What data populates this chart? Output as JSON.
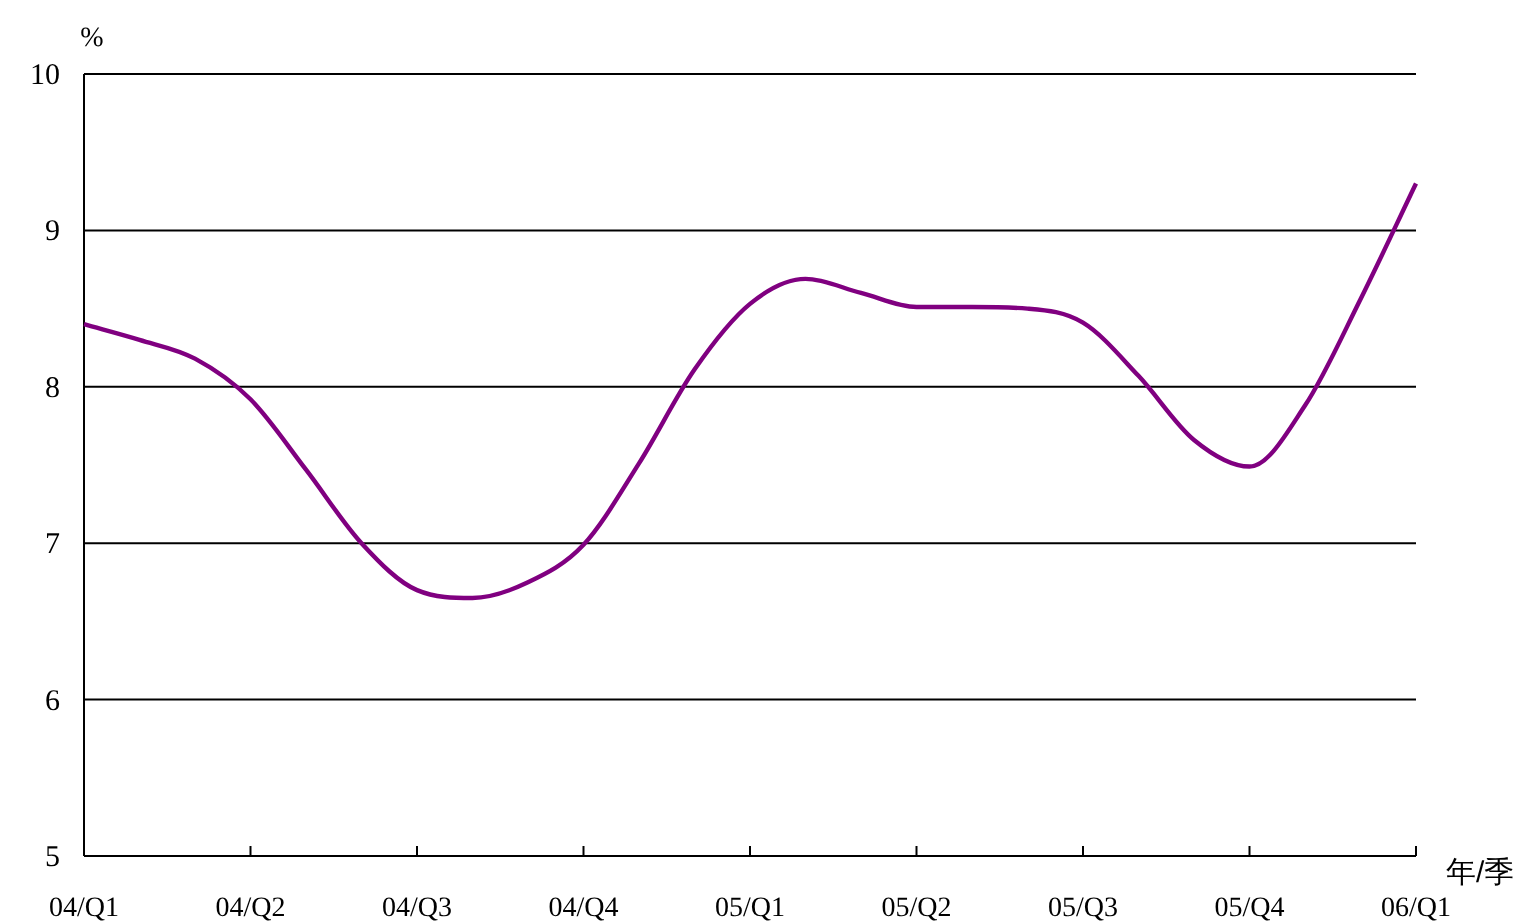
{
  "chart_data": {
    "type": "line",
    "xlabel": "年/季",
    "ylabel": "%",
    "categories": [
      "04/Q1",
      null,
      null,
      "04/Q2",
      null,
      null,
      "04/Q3",
      null,
      null,
      "04/Q4",
      null,
      null,
      "05/Q1",
      null,
      null,
      "05/Q2",
      null,
      null,
      "05/Q3",
      null,
      null,
      "05/Q4",
      null,
      null,
      "06/Q1"
    ],
    "series": [
      {
        "color": "#800080",
        "values": [
          8.4,
          8.3,
          8.18,
          7.92,
          7.47,
          7.0,
          6.7,
          6.65,
          6.75,
          6.99,
          7.51,
          8.11,
          8.53,
          8.69,
          8.6,
          8.51,
          8.51,
          8.5,
          8.41,
          8.07,
          7.66,
          7.49,
          7.88,
          8.56,
          9.3
        ]
      }
    ],
    "ylim": [
      5,
      10
    ],
    "yticks": [
      5,
      6,
      7,
      8,
      9,
      10
    ],
    "grid": "y"
  }
}
